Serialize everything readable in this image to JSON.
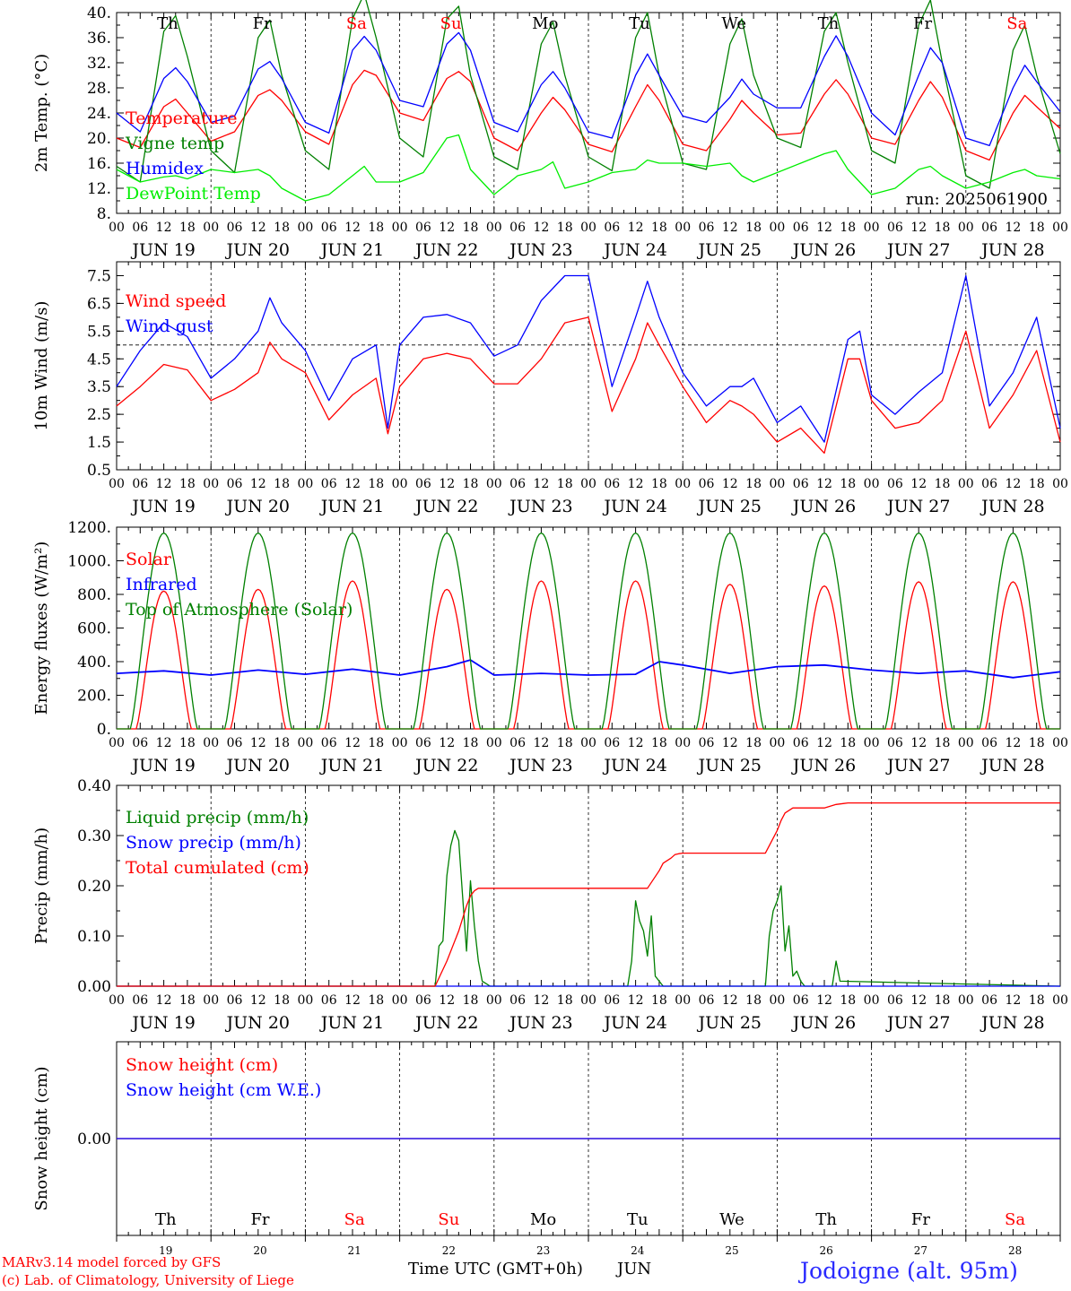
{
  "footer": {
    "credit_line1": "MARv3.14 model forced by GFS",
    "credit_line2": "(c) Lab. of Climatology, University of Liege",
    "time_axis_label": "Time UTC (GMT+0h)",
    "month": "JUN",
    "station": "Jodoigne (alt. 95m)"
  },
  "days": {
    "weekday_labels": [
      "Th",
      "Fr",
      "Sa",
      "Su",
      "Mo",
      "Tu",
      "We",
      "Th",
      "Fr",
      "Sa"
    ],
    "weekday_colors": [
      "#000000",
      "#000000",
      "#ff0000",
      "#ff0000",
      "#000000",
      "#000000",
      "#000000",
      "#000000",
      "#000000",
      "#ff0000"
    ],
    "date_labels": [
      "JUN 19",
      "JUN 20",
      "JUN 21",
      "JUN 22",
      "JUN 23",
      "JUN 24",
      "JUN 25",
      "JUN 26",
      "JUN 27",
      "JUN 28"
    ],
    "day_numbers": [
      "19",
      "20",
      "21",
      "22",
      "23",
      "24",
      "25",
      "26",
      "27",
      "28"
    ],
    "hour_ticks": [
      "00",
      "06",
      "12",
      "18"
    ],
    "final_hour": "00"
  },
  "chart_data": [
    {
      "id": "temperature",
      "type": "line",
      "ylabel": "2m Temp. (°C)",
      "ylim": [
        8,
        40
      ],
      "yticks": [
        "8.",
        "12.",
        "16.",
        "20.",
        "24.",
        "28.",
        "32.",
        "36.",
        "40."
      ],
      "x_unit": "hours since JUN 19 00 UTC",
      "xlim": [
        0,
        240
      ],
      "annotation": "run: 2025061900",
      "series": [
        {
          "name": "Temperature",
          "color": "#ff0000",
          "x": [
            0,
            6,
            12,
            15,
            18,
            24,
            30,
            36,
            39,
            42,
            48,
            54,
            60,
            63,
            66,
            72,
            78,
            84,
            87,
            90,
            96,
            102,
            108,
            111,
            114,
            120,
            126,
            132,
            135,
            138,
            144,
            150,
            156,
            159,
            162,
            168,
            174,
            180,
            183,
            186,
            192,
            198,
            204,
            207,
            210,
            216,
            222,
            228,
            231,
            234,
            240
          ],
          "values": [
            20,
            18.5,
            25,
            26.2,
            24,
            19.5,
            21,
            26.8,
            27.7,
            26,
            21,
            19,
            28.5,
            30.8,
            30,
            24,
            22.8,
            29.5,
            30.6,
            29,
            20,
            18,
            24,
            26.5,
            24.5,
            19,
            17.8,
            25,
            28.5,
            26,
            19,
            18,
            23,
            26,
            24,
            20.5,
            20.8,
            27,
            29.3,
            27,
            20,
            19,
            26,
            29,
            26.5,
            18,
            16.5,
            24,
            26.8,
            25,
            21.5
          ]
        },
        {
          "name": "Vigne temp",
          "color": "#008000",
          "x": [
            0,
            6,
            12,
            15,
            18,
            24,
            30,
            36,
            39,
            42,
            48,
            54,
            60,
            63,
            66,
            72,
            78,
            84,
            87,
            90,
            96,
            102,
            108,
            111,
            114,
            120,
            126,
            132,
            135,
            138,
            144,
            150,
            156,
            159,
            162,
            168,
            174,
            180,
            183,
            186,
            192,
            198,
            204,
            207,
            210,
            216,
            222,
            228,
            231,
            234,
            240
          ],
          "values": [
            15.5,
            13,
            37,
            39.5,
            33,
            18,
            14.5,
            36,
            38.8,
            30,
            18,
            15,
            39,
            43,
            36,
            20,
            17,
            39,
            41,
            30,
            17,
            15,
            35,
            38.5,
            30,
            17,
            14.8,
            36,
            40,
            30,
            16,
            15,
            35,
            39,
            30,
            20,
            18.5,
            37,
            40,
            32,
            18,
            16,
            38,
            42,
            32,
            14,
            12,
            34,
            38,
            30,
            17.5
          ]
        },
        {
          "name": "Humidex",
          "color": "#0000ff",
          "x": [
            0,
            6,
            12,
            15,
            18,
            24,
            30,
            36,
            39,
            42,
            48,
            54,
            60,
            63,
            66,
            72,
            78,
            84,
            87,
            90,
            96,
            102,
            108,
            111,
            114,
            120,
            126,
            132,
            135,
            138,
            144,
            150,
            156,
            159,
            162,
            168,
            174,
            180,
            183,
            186,
            192,
            198,
            204,
            207,
            210,
            216,
            222,
            228,
            231,
            234,
            240
          ],
          "values": [
            24,
            21,
            29.5,
            31.2,
            29,
            22.5,
            23.5,
            31,
            32.2,
            29.5,
            22.5,
            20.8,
            34,
            36.2,
            34,
            26,
            25,
            35,
            36.8,
            34,
            22.5,
            21,
            28.5,
            30.6,
            28,
            21,
            20,
            30,
            33.4,
            30,
            23.5,
            22.5,
            26.5,
            29.4,
            27,
            24.8,
            24.8,
            33,
            36.3,
            33,
            24,
            20.5,
            30,
            34.4,
            32,
            20,
            18.8,
            28,
            31.6,
            29,
            24.2
          ]
        },
        {
          "name": "DewPoint Temp",
          "color": "#00ee00",
          "x": [
            0,
            6,
            12,
            15,
            18,
            24,
            30,
            36,
            39,
            42,
            48,
            54,
            60,
            63,
            66,
            72,
            78,
            84,
            87,
            90,
            96,
            102,
            108,
            111,
            114,
            120,
            126,
            132,
            135,
            138,
            144,
            150,
            156,
            159,
            162,
            168,
            174,
            180,
            183,
            186,
            192,
            198,
            204,
            207,
            210,
            216,
            222,
            228,
            231,
            234,
            240
          ],
          "values": [
            15,
            13,
            13.8,
            14,
            13.5,
            15,
            14.5,
            15,
            14,
            12,
            10,
            11,
            14,
            15.5,
            13,
            13,
            14.5,
            20,
            20.5,
            15,
            11,
            14,
            15,
            16.2,
            12,
            13,
            14.5,
            15,
            16.5,
            16,
            16,
            15.5,
            16,
            14,
            13,
            14.5,
            16,
            17.5,
            18,
            15,
            11,
            12,
            15,
            15.5,
            14,
            12,
            13,
            14.5,
            15,
            14,
            13.5
          ]
        }
      ]
    },
    {
      "id": "wind",
      "type": "line",
      "ylabel": "10m Wind (m/s)",
      "ylim": [
        0.5,
        8.0
      ],
      "yticks": [
        "0.5",
        "1.5",
        "2.5",
        "3.5",
        "4.5",
        "5.5",
        "6.5",
        "7.5"
      ],
      "reference_line": 5,
      "x_unit": "hours since JUN 19 00 UTC",
      "xlim": [
        0,
        240
      ],
      "series": [
        {
          "name": "Wind speed",
          "color": "#ff0000",
          "x": [
            0,
            6,
            12,
            18,
            24,
            30,
            36,
            39,
            42,
            48,
            54,
            60,
            66,
            69,
            72,
            78,
            84,
            90,
            96,
            102,
            108,
            114,
            120,
            126,
            132,
            135,
            138,
            144,
            150,
            156,
            159,
            162,
            168,
            174,
            180,
            186,
            189,
            192,
            198,
            204,
            210,
            216,
            222,
            228,
            234,
            240
          ],
          "values": [
            2.8,
            3.5,
            4.3,
            4.1,
            3,
            3.4,
            4,
            5.1,
            4.5,
            4,
            2.3,
            3.2,
            3.8,
            1.8,
            3.5,
            4.5,
            4.7,
            4.5,
            3.6,
            3.6,
            4.5,
            5.8,
            6,
            2.6,
            4.5,
            5.8,
            5,
            3.5,
            2.2,
            3,
            2.8,
            2.5,
            1.5,
            2,
            1.1,
            4.5,
            4.5,
            3,
            2,
            2.2,
            3,
            5.5,
            2,
            3.2,
            4.8,
            1.5
          ]
        },
        {
          "name": "Wind gust",
          "color": "#0000ff",
          "x": [
            0,
            6,
            12,
            18,
            24,
            30,
            36,
            39,
            42,
            48,
            54,
            60,
            66,
            69,
            72,
            78,
            84,
            90,
            96,
            102,
            108,
            114,
            120,
            126,
            132,
            135,
            138,
            144,
            150,
            156,
            159,
            162,
            168,
            174,
            180,
            186,
            189,
            192,
            198,
            204,
            210,
            216,
            222,
            228,
            234,
            240
          ],
          "values": [
            3.5,
            4.8,
            5.8,
            5.3,
            3.8,
            4.5,
            5.5,
            6.7,
            5.8,
            4.8,
            3,
            4.5,
            5,
            2,
            5,
            6,
            6.1,
            5.8,
            4.6,
            5,
            6.6,
            7.5,
            7.5,
            3.5,
            6,
            7.3,
            6,
            4,
            2.8,
            3.5,
            3.5,
            3.8,
            2.2,
            2.8,
            1.5,
            5.2,
            5.5,
            3.2,
            2.5,
            3.3,
            4,
            7.5,
            2.8,
            4,
            6,
            2
          ]
        }
      ]
    },
    {
      "id": "energy",
      "type": "line",
      "ylabel": "Energy fluxes (W/m²)",
      "ylim": [
        0,
        1200
      ],
      "yticks": [
        "0.",
        "200.",
        "400.",
        "600.",
        "800.",
        "1000.",
        "1200."
      ],
      "x_unit": "hours since JUN 19 00 UTC",
      "xlim": [
        0,
        240
      ],
      "series": [
        {
          "name": "Solar",
          "color": "#ff0000",
          "daily_peak": [
            820,
            830,
            880,
            830,
            880,
            880,
            860,
            850,
            875,
            875
          ]
        },
        {
          "name": "Infrared",
          "color": "#0000ff",
          "x": [
            0,
            12,
            24,
            36,
            48,
            60,
            72,
            84,
            90,
            96,
            108,
            120,
            132,
            138,
            144,
            156,
            168,
            180,
            192,
            204,
            216,
            228,
            240
          ],
          "values": [
            330,
            345,
            320,
            350,
            325,
            355,
            320,
            370,
            410,
            320,
            330,
            320,
            325,
            400,
            380,
            330,
            370,
            380,
            350,
            330,
            345,
            305,
            340
          ]
        },
        {
          "name": "Top of Atmosphere (Solar)",
          "color": "#008000",
          "daily_peak": [
            1165,
            1165,
            1165,
            1165,
            1165,
            1165,
            1165,
            1165,
            1165,
            1165
          ]
        }
      ]
    },
    {
      "id": "precip",
      "type": "line",
      "ylabel": "Precip (mm/h)",
      "ylim": [
        0,
        0.4
      ],
      "yticks": [
        "0.00",
        "0.10",
        "0.20",
        "0.30",
        "0.40"
      ],
      "x_unit": "hours since JUN 19 00 UTC",
      "xlim": [
        0,
        240
      ],
      "series": [
        {
          "name": "Liquid precip (mm/h)",
          "color": "#008000",
          "x": [
            0,
            81,
            82,
            83,
            84,
            85,
            86,
            87,
            88,
            89,
            90,
            91,
            92,
            93,
            94,
            95,
            130,
            131,
            132,
            133,
            134,
            135,
            136,
            137,
            138,
            139,
            165,
            166,
            167,
            168,
            169,
            170,
            171,
            172,
            173,
            174,
            175,
            182,
            183,
            184,
            240
          ],
          "values": [
            0,
            0,
            0.08,
            0.09,
            0.22,
            0.28,
            0.31,
            0.29,
            0.18,
            0.07,
            0.21,
            0.12,
            0.05,
            0.01,
            0.005,
            0,
            0,
            0.05,
            0.17,
            0.13,
            0.11,
            0.06,
            0.14,
            0.02,
            0.01,
            0,
            0,
            0.1,
            0.15,
            0.17,
            0.2,
            0.07,
            0.12,
            0.02,
            0.03,
            0.01,
            0,
            0,
            0.05,
            0.01,
            0
          ]
        },
        {
          "name": "Snow precip (mm/h)",
          "color": "#0000ff",
          "x": [
            0,
            240
          ],
          "values": [
            0,
            0
          ]
        },
        {
          "name": "Total cumulated (cm)",
          "color": "#ff0000",
          "x": [
            0,
            81,
            84,
            87,
            89,
            90,
            91,
            92,
            135,
            138,
            139,
            141,
            142,
            143,
            144,
            165,
            168,
            169,
            170,
            172,
            180,
            183,
            185,
            186,
            240
          ],
          "values": [
            0,
            0,
            0.05,
            0.11,
            0.16,
            0.18,
            0.19,
            0.195,
            0.195,
            0.23,
            0.245,
            0.255,
            0.262,
            0.264,
            0.265,
            0.265,
            0.31,
            0.33,
            0.345,
            0.355,
            0.355,
            0.362,
            0.364,
            0.365,
            0.365
          ]
        }
      ]
    },
    {
      "id": "snow",
      "type": "line",
      "ylabel": "Snow height (cm)",
      "yticks": [
        "0.00"
      ],
      "x_unit": "hours since JUN 19 00 UTC",
      "xlim": [
        0,
        240
      ],
      "series": [
        {
          "name": "Snow height (cm)",
          "color": "#ff0000",
          "x": [
            0,
            240
          ],
          "values": [
            0,
            0
          ]
        },
        {
          "name": "Snow height (cm W.E.)",
          "color": "#0000ff",
          "x": [
            0,
            240
          ],
          "values": [
            0,
            0
          ]
        }
      ]
    }
  ]
}
